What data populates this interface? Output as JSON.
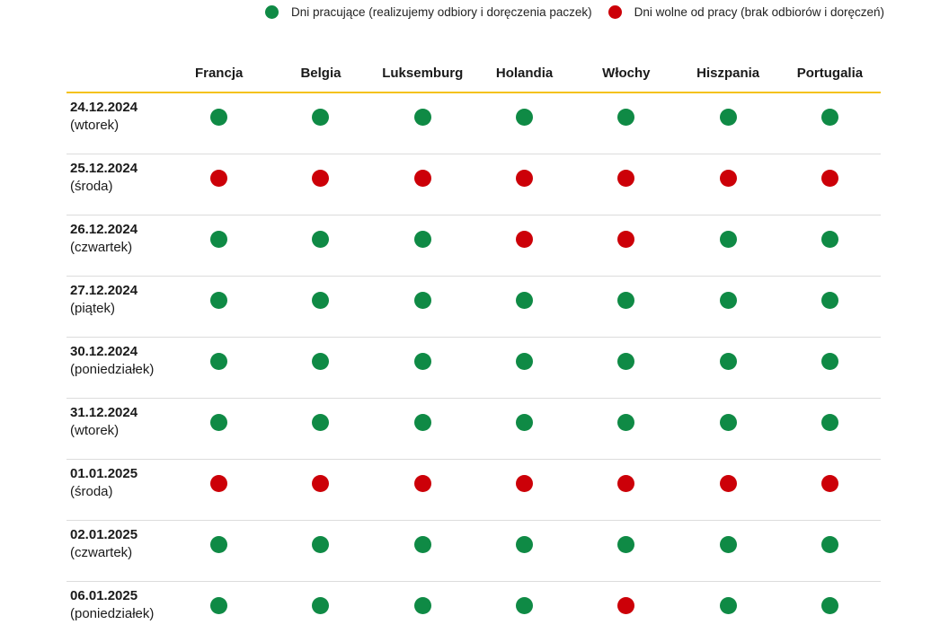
{
  "legend": {
    "working": {
      "label": "Dni pracujące (realizujemy odbiory i doręczenia paczek)",
      "color": "#0f8a45"
    },
    "off": {
      "label": "Dni wolne od pracy (brak odbiorów i doręczeń)",
      "color": "#cc0008"
    }
  },
  "table": {
    "countries": [
      "Francja",
      "Belgia",
      "Luksemburg",
      "Holandia",
      "Włochy",
      "Hiszpania",
      "Portugalia"
    ],
    "rows": [
      {
        "date": "24.12.2024",
        "day": "(wtorek)",
        "status": [
          "working",
          "working",
          "working",
          "working",
          "working",
          "working",
          "working"
        ]
      },
      {
        "date": "25.12.2024",
        "day": "(środa)",
        "status": [
          "off",
          "off",
          "off",
          "off",
          "off",
          "off",
          "off"
        ]
      },
      {
        "date": "26.12.2024",
        "day": "(czwartek)",
        "status": [
          "working",
          "working",
          "working",
          "off",
          "off",
          "working",
          "working"
        ]
      },
      {
        "date": "27.12.2024",
        "day": "(piątek)",
        "status": [
          "working",
          "working",
          "working",
          "working",
          "working",
          "working",
          "working"
        ]
      },
      {
        "date": "30.12.2024",
        "day": "(poniedziałek)",
        "status": [
          "working",
          "working",
          "working",
          "working",
          "working",
          "working",
          "working"
        ]
      },
      {
        "date": "31.12.2024",
        "day": "(wtorek)",
        "status": [
          "working",
          "working",
          "working",
          "working",
          "working",
          "working",
          "working"
        ]
      },
      {
        "date": "01.01.2025",
        "day": "(środa)",
        "status": [
          "off",
          "off",
          "off",
          "off",
          "off",
          "off",
          "off"
        ]
      },
      {
        "date": "02.01.2025",
        "day": "(czwartek)",
        "status": [
          "working",
          "working",
          "working",
          "working",
          "working",
          "working",
          "working"
        ]
      },
      {
        "date": "06.01.2025",
        "day": "(poniedziałek)",
        "status": [
          "working",
          "working",
          "working",
          "working",
          "off",
          "working",
          "working"
        ]
      }
    ]
  }
}
